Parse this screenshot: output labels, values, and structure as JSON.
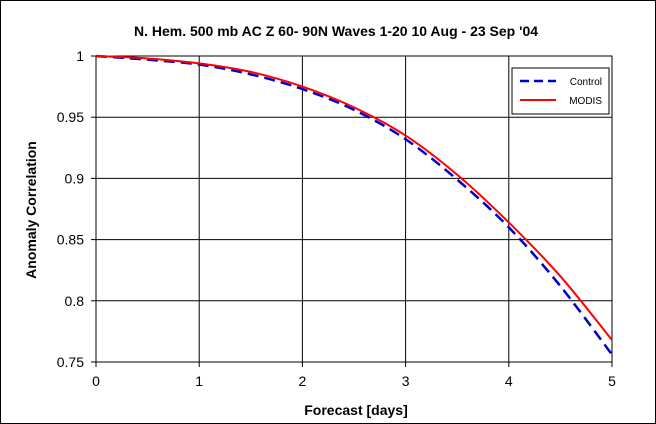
{
  "chart_data": {
    "type": "line",
    "title": "N. Hem. 500 mb AC Z  60- 90N Waves 1-20 10 Aug - 23 Sep '04",
    "xlabel": "Forecast [days]",
    "ylabel": "Anomaly Correlation",
    "xlim": [
      0,
      5
    ],
    "ylim": [
      0.75,
      1
    ],
    "x_ticks": [
      "0",
      "1",
      "2",
      "3",
      "4",
      "5"
    ],
    "y_ticks": [
      "0.75",
      "0.8",
      "0.85",
      "0.9",
      "0.95",
      "1"
    ],
    "grid": true,
    "legend_position": "top-right",
    "x": [
      0,
      0.5,
      1,
      1.5,
      2,
      2.5,
      3,
      3.5,
      4,
      4.5,
      5
    ],
    "series": [
      {
        "name": "Control",
        "color": "#0000cc",
        "line_style": "dashed",
        "values": [
          1.0,
          0.997,
          0.993,
          0.985,
          0.973,
          0.956,
          0.932,
          0.899,
          0.86,
          0.812,
          0.756
        ]
      },
      {
        "name": "MODIS",
        "color": "#ff0000",
        "line_style": "solid",
        "values": [
          1.0,
          0.998,
          0.994,
          0.987,
          0.975,
          0.958,
          0.935,
          0.903,
          0.864,
          0.82,
          0.768
        ]
      }
    ]
  }
}
